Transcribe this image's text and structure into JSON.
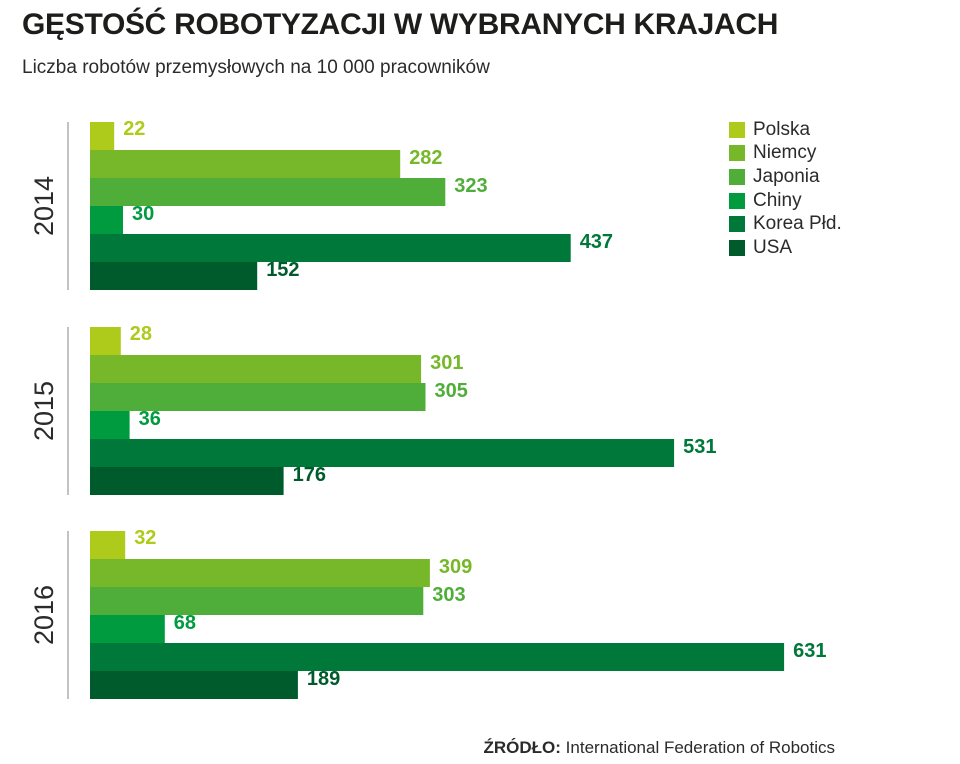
{
  "title": "GĘSTOŚĆ ROBOTYZACJI W WYBRANYCH KRAJACH",
  "subtitle": "Liczba robotów przemysłowych na 10 000 pracowników",
  "source": {
    "label": "ŹRÓDŁO:",
    "text": "International Federation of Robotics"
  },
  "chart_data": {
    "type": "bar",
    "orientation": "horizontal",
    "groups": [
      "2014",
      "2015",
      "2016"
    ],
    "series": [
      {
        "name": "Polska",
        "color": "#aecb1b",
        "values": [
          22,
          28,
          32
        ]
      },
      {
        "name": "Niemcy",
        "color": "#77b82a",
        "values": [
          282,
          301,
          309
        ]
      },
      {
        "name": "Japonia",
        "color": "#4fad3a",
        "values": [
          323,
          305,
          303
        ]
      },
      {
        "name": "Chiny",
        "color": "#009a3f",
        "values": [
          30,
          36,
          68
        ]
      },
      {
        "name": "Korea Płd.",
        "color": "#00783a",
        "values": [
          437,
          531,
          631
        ]
      },
      {
        "name": "USA",
        "color": "#005b2c",
        "values": [
          152,
          176,
          189
        ]
      }
    ],
    "legend_position": "top-right",
    "data_labels": true,
    "grid": false
  }
}
